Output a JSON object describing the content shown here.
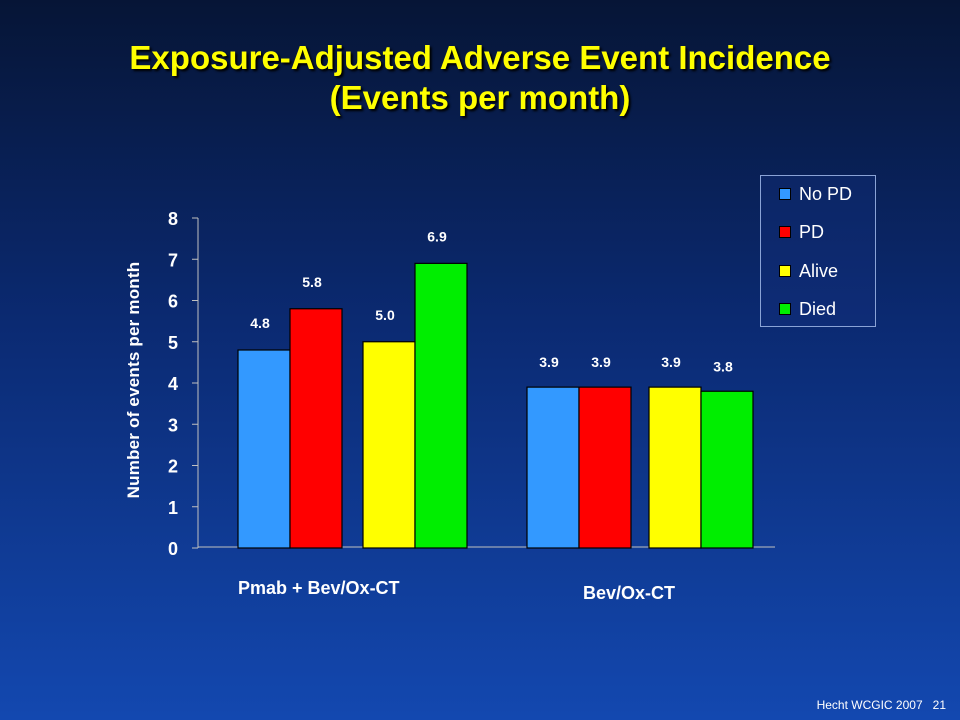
{
  "title_line1": "Exposure-Adjusted Adverse Event Incidence",
  "title_line2": "(Events per month)",
  "footer": "Hecht WCGIC 2007",
  "slide_number": "21",
  "chart_data": {
    "type": "bar",
    "title": "",
    "xlabel": "",
    "ylabel": "Number of events per month",
    "ylim": [
      0,
      8
    ],
    "yticks": [
      0,
      1,
      2,
      3,
      4,
      5,
      6,
      7,
      8
    ],
    "groups": [
      "Pmab + Bev/Ox-CT",
      "Bev/Ox-CT"
    ],
    "legend_position": "top-right",
    "series": [
      {
        "name": "No PD",
        "color": "#3399ff",
        "values": [
          4.8,
          3.9
        ]
      },
      {
        "name": "PD",
        "color": "#ff0000",
        "values": [
          5.8,
          3.9
        ]
      },
      {
        "name": "Alive",
        "color": "#ffff00",
        "values": [
          5.0,
          3.9
        ]
      },
      {
        "name": "Died",
        "color": "#00ee00",
        "values": [
          6.9,
          3.8
        ]
      }
    ],
    "data_labels": [
      [
        "4.8",
        "5.8",
        "5.0",
        "6.9"
      ],
      [
        "3.9",
        "3.9",
        "3.9",
        "3.8"
      ]
    ]
  }
}
